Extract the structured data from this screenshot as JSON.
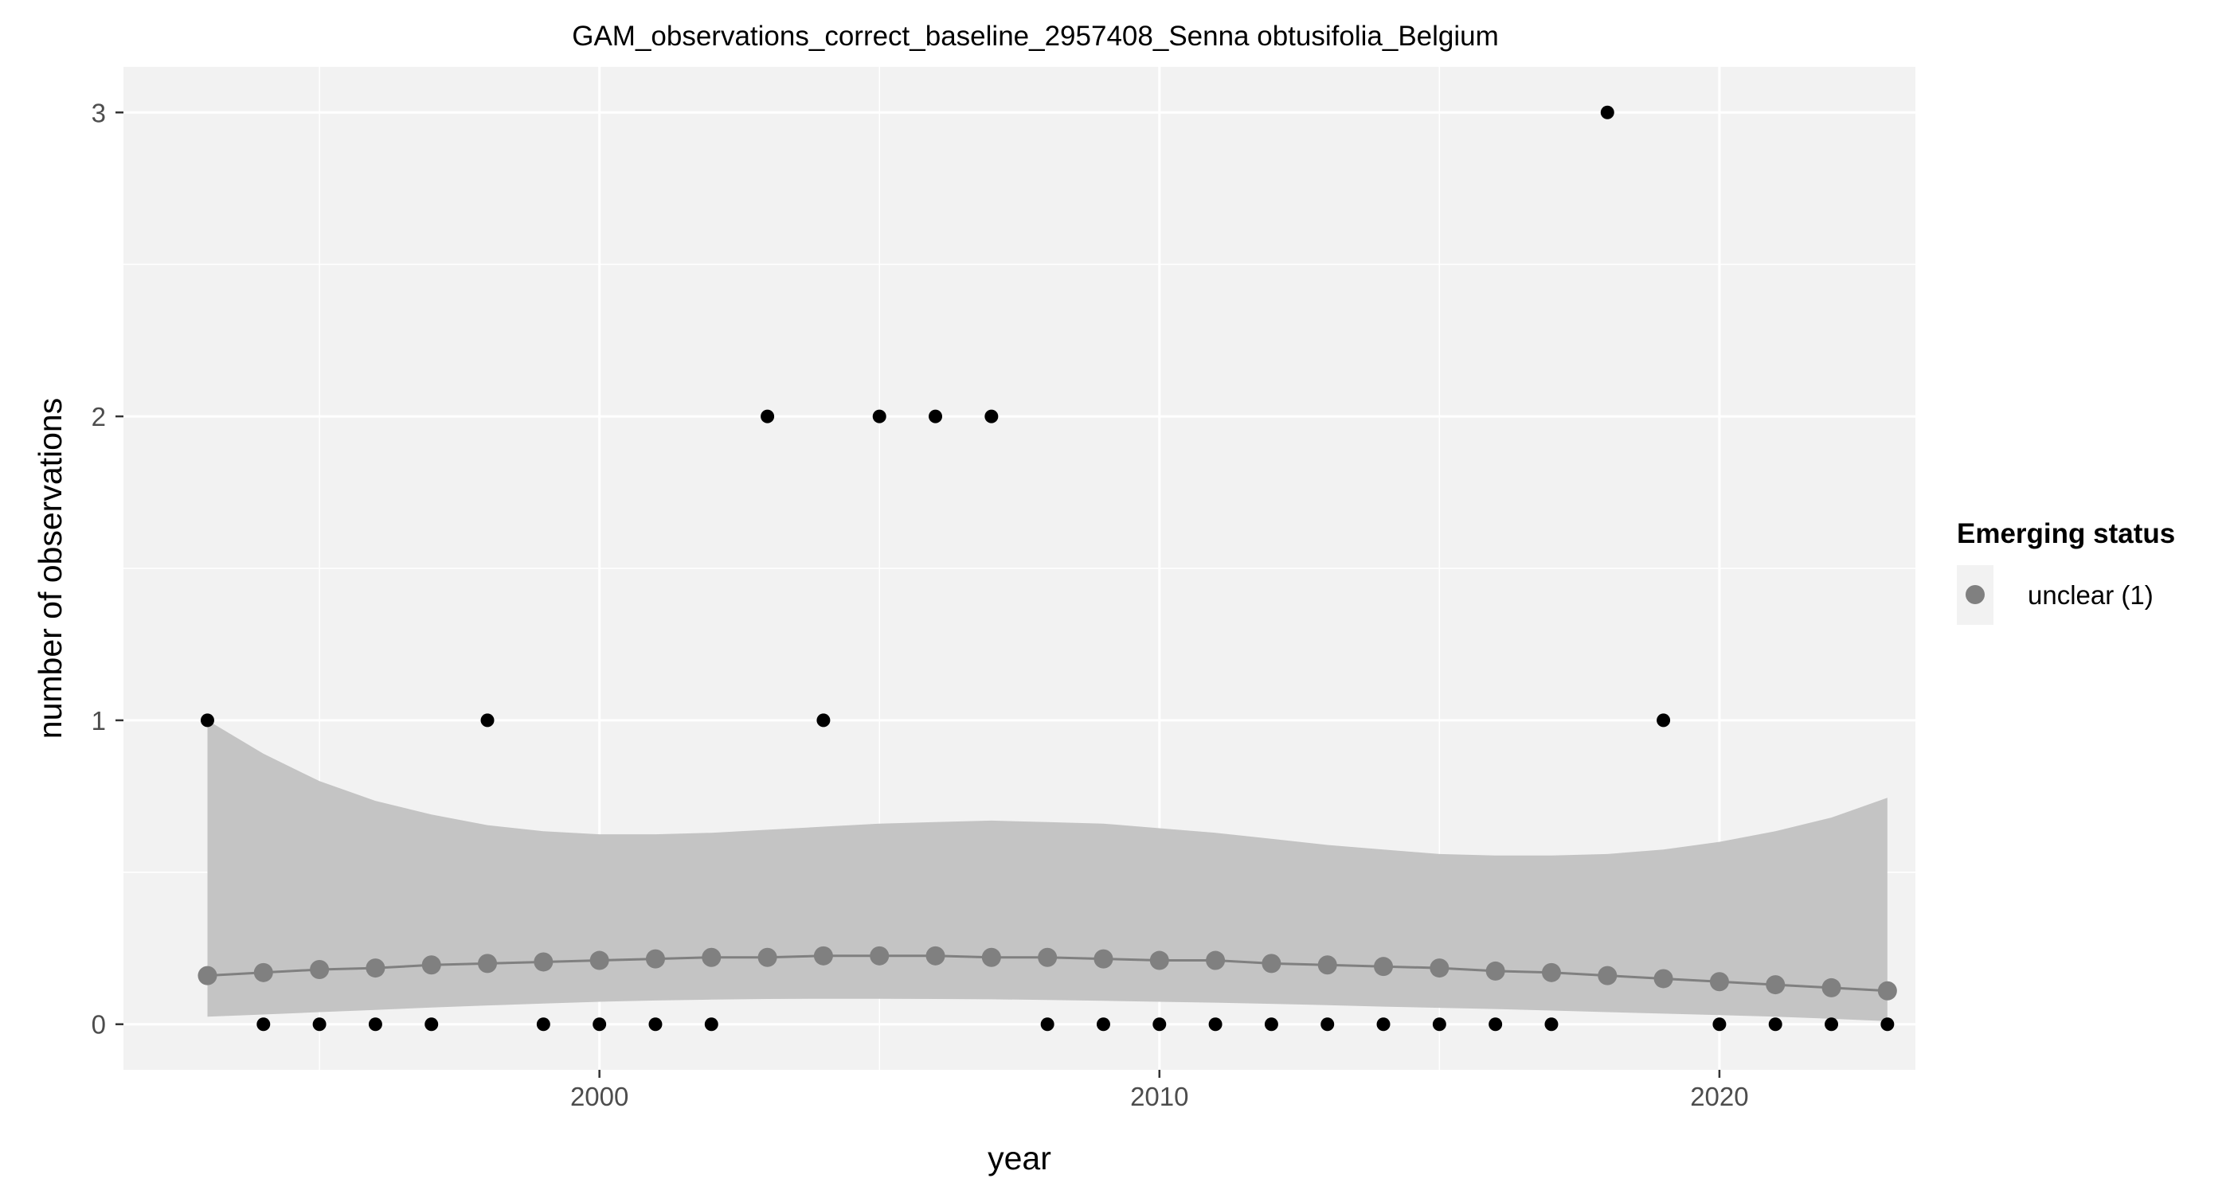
{
  "chart_data": {
    "type": "scatter",
    "title": "GAM_observations_correct_baseline_2957408_Senna obtusifolia_Belgium",
    "xlabel": "year",
    "ylabel": "number of observations",
    "xlim": [
      1991.5,
      2023.5
    ],
    "ylim": [
      -0.15,
      3.15
    ],
    "x_ticks": [
      2000,
      2010,
      2020
    ],
    "y_ticks": [
      0,
      1,
      2,
      3
    ],
    "grid": true,
    "legend": {
      "title": "Emerging status",
      "position": "right",
      "entries": [
        {
          "label": "unclear (1)",
          "color": "#808080"
        }
      ]
    },
    "observations": {
      "color": "#000000",
      "x": [
        1993,
        1994,
        1995,
        1996,
        1997,
        1998,
        1999,
        2000,
        2001,
        2002,
        2003,
        2004,
        2005,
        2006,
        2007,
        2008,
        2009,
        2010,
        2011,
        2012,
        2013,
        2014,
        2015,
        2016,
        2017,
        2018,
        2019,
        2020,
        2021,
        2022,
        2023
      ],
      "y": [
        1,
        0,
        0,
        0,
        0,
        1,
        0,
        0,
        0,
        0,
        2,
        1,
        2,
        2,
        2,
        0,
        0,
        0,
        0,
        0,
        0,
        0,
        0,
        0,
        0,
        3,
        1,
        0,
        0,
        0,
        0
      ]
    },
    "gam_fit": {
      "name": "unclear (1)",
      "color": "#808080",
      "band_color": "#c4c4c4",
      "x": [
        1993,
        1994,
        1995,
        1996,
        1997,
        1998,
        1999,
        2000,
        2001,
        2002,
        2003,
        2004,
        2005,
        2006,
        2007,
        2008,
        2009,
        2010,
        2011,
        2012,
        2013,
        2014,
        2015,
        2016,
        2017,
        2018,
        2019,
        2020,
        2021,
        2022,
        2023
      ],
      "fit": [
        0.16,
        0.17,
        0.18,
        0.185,
        0.195,
        0.2,
        0.205,
        0.21,
        0.215,
        0.22,
        0.22,
        0.225,
        0.225,
        0.225,
        0.22,
        0.22,
        0.215,
        0.21,
        0.21,
        0.2,
        0.195,
        0.19,
        0.185,
        0.175,
        0.17,
        0.16,
        0.15,
        0.14,
        0.13,
        0.12,
        0.11
      ],
      "lower": [
        0.025,
        0.032,
        0.04,
        0.047,
        0.055,
        0.062,
        0.068,
        0.074,
        0.078,
        0.081,
        0.083,
        0.084,
        0.084,
        0.083,
        0.082,
        0.08,
        0.077,
        0.074,
        0.071,
        0.067,
        0.063,
        0.058,
        0.054,
        0.05,
        0.045,
        0.04,
        0.035,
        0.03,
        0.025,
        0.018,
        0.01
      ],
      "upper": [
        1.0,
        0.89,
        0.8,
        0.735,
        0.69,
        0.655,
        0.635,
        0.625,
        0.625,
        0.63,
        0.64,
        0.65,
        0.66,
        0.665,
        0.67,
        0.665,
        0.66,
        0.645,
        0.63,
        0.61,
        0.59,
        0.575,
        0.56,
        0.555,
        0.555,
        0.56,
        0.575,
        0.6,
        0.635,
        0.68,
        0.745
      ]
    }
  }
}
